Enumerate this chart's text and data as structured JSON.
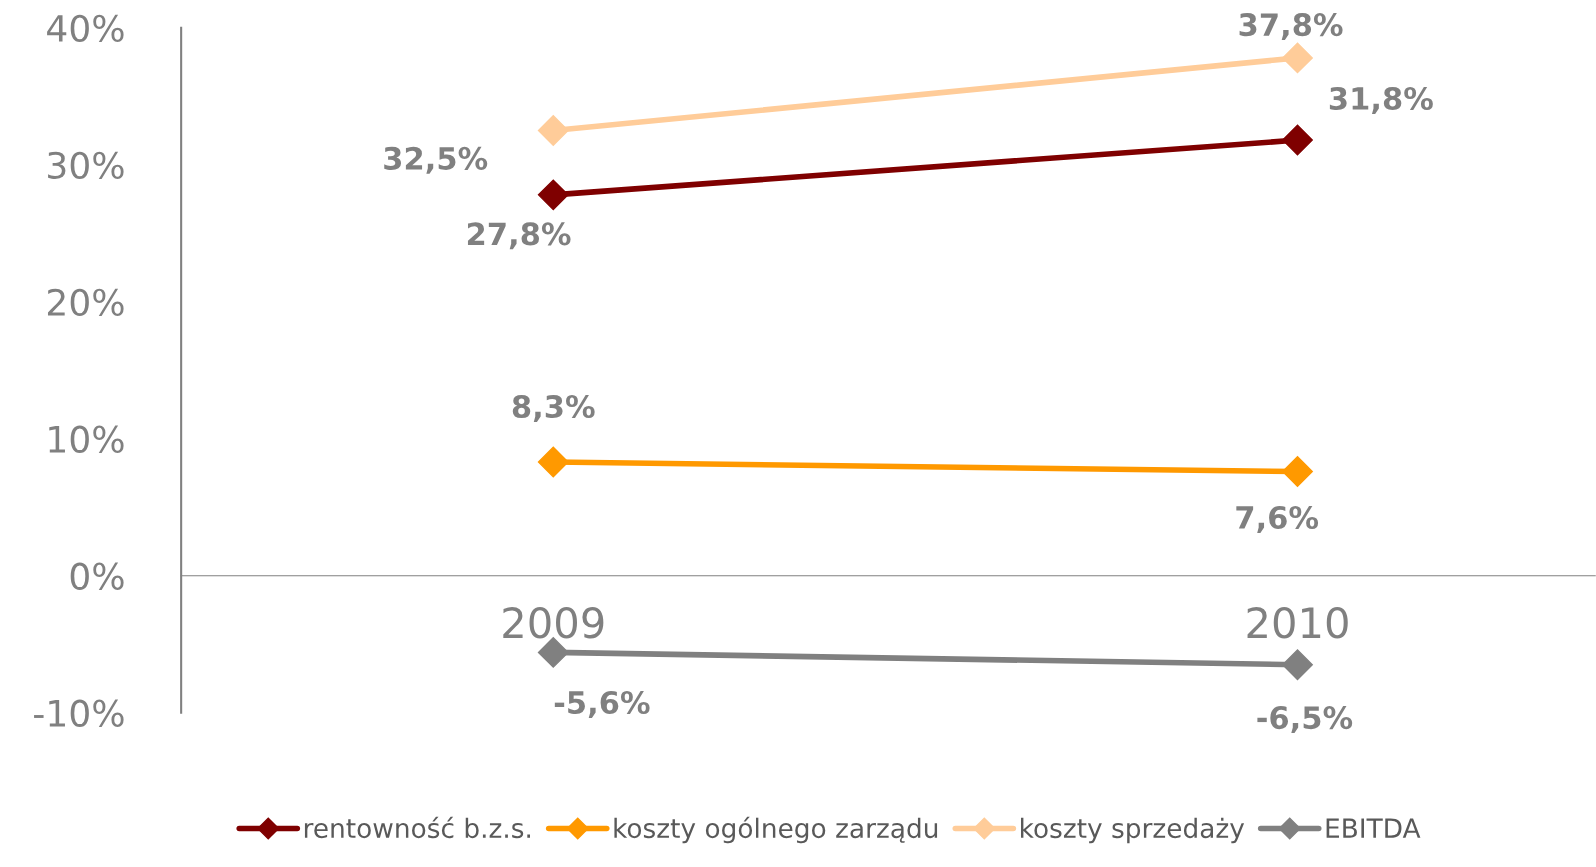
{
  "chart_data": {
    "type": "line",
    "categories": [
      "2009",
      "2010"
    ],
    "series": [
      {
        "name": "rentowność b.z.s.",
        "color": "#7f0000",
        "values": [
          27.8,
          31.8
        ],
        "value_labels": [
          "27,8%",
          "31,8%"
        ]
      },
      {
        "name": "koszty ogólnego zarządu",
        "color": "#ff9900",
        "values": [
          8.3,
          7.6
        ],
        "value_labels": [
          "8,3%",
          "7,6%"
        ]
      },
      {
        "name": "koszty sprzedaży",
        "color": "#ffcc99",
        "values": [
          32.5,
          37.8
        ],
        "value_labels": [
          "32,5%",
          "37,8%"
        ]
      },
      {
        "name": "EBITDA",
        "color": "#808080",
        "values": [
          -5.6,
          -6.5
        ],
        "value_labels": [
          "-5,6%",
          "-6,5%"
        ]
      }
    ],
    "ylim": [
      -10,
      40
    ],
    "yticks": [
      {
        "value": -10,
        "label": "-10%"
      },
      {
        "value": 0,
        "label": "0%"
      },
      {
        "value": 10,
        "label": "10%"
      },
      {
        "value": 20,
        "label": "20%"
      },
      {
        "value": 30,
        "label": "30%"
      },
      {
        "value": 40,
        "label": "40%"
      }
    ],
    "marker": "diamond",
    "line_style": "solid",
    "grid": false,
    "legend": "bottom"
  }
}
